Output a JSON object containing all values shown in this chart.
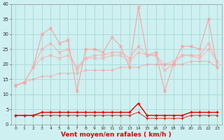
{
  "x": [
    0,
    1,
    2,
    3,
    4,
    5,
    6,
    7,
    8,
    9,
    10,
    11,
    12,
    13,
    14,
    15,
    16,
    17,
    18,
    19,
    20,
    21,
    22,
    23
  ],
  "rafales": [
    13,
    14,
    19,
    30,
    32,
    27,
    28,
    11,
    25,
    25,
    24,
    29,
    26,
    19,
    39,
    23,
    24,
    11,
    20,
    26,
    26,
    25,
    35,
    19
  ],
  "avg_line2": [
    13,
    14,
    19,
    25,
    27,
    24,
    25,
    18,
    22,
    23,
    23,
    24,
    24,
    22,
    26,
    23,
    23,
    18,
    20,
    23,
    23,
    23,
    27,
    21
  ],
  "avg_line3": [
    13,
    14,
    19,
    22,
    23,
    22,
    23,
    19,
    22,
    22,
    22,
    23,
    23,
    21,
    24,
    23,
    23,
    20,
    21,
    23,
    23,
    22,
    25,
    21
  ],
  "avg_line1": [
    13,
    14,
    15,
    16,
    16,
    17,
    17,
    17,
    18,
    18,
    18,
    18,
    19,
    19,
    19,
    20,
    20,
    20,
    20,
    20,
    21,
    21,
    21,
    19
  ],
  "wind_main": [
    3,
    3,
    3,
    4,
    4,
    4,
    4,
    4,
    4,
    4,
    4,
    4,
    4,
    4,
    7,
    3,
    3,
    3,
    3,
    3,
    4,
    4,
    4,
    4
  ],
  "wind_low": [
    3,
    3,
    3,
    3,
    3,
    3,
    3,
    3,
    3,
    3,
    3,
    3,
    3,
    3,
    4,
    2,
    2,
    2,
    2,
    2,
    3,
    3,
    3,
    3
  ],
  "xlabel": "Vent moyen/en rafales ( km/h )",
  "bg_color": "#cef0f0",
  "grid_color": "#aad8d8",
  "red_dark": "#dd0000",
  "red_light": "#ff9999",
  "red_mid": "#ffaaaa",
  "ylim": [
    0,
    40
  ],
  "xlim": [
    -0.5,
    23.5
  ],
  "yticks": [
    0,
    5,
    10,
    15,
    20,
    25,
    30,
    35,
    40
  ]
}
